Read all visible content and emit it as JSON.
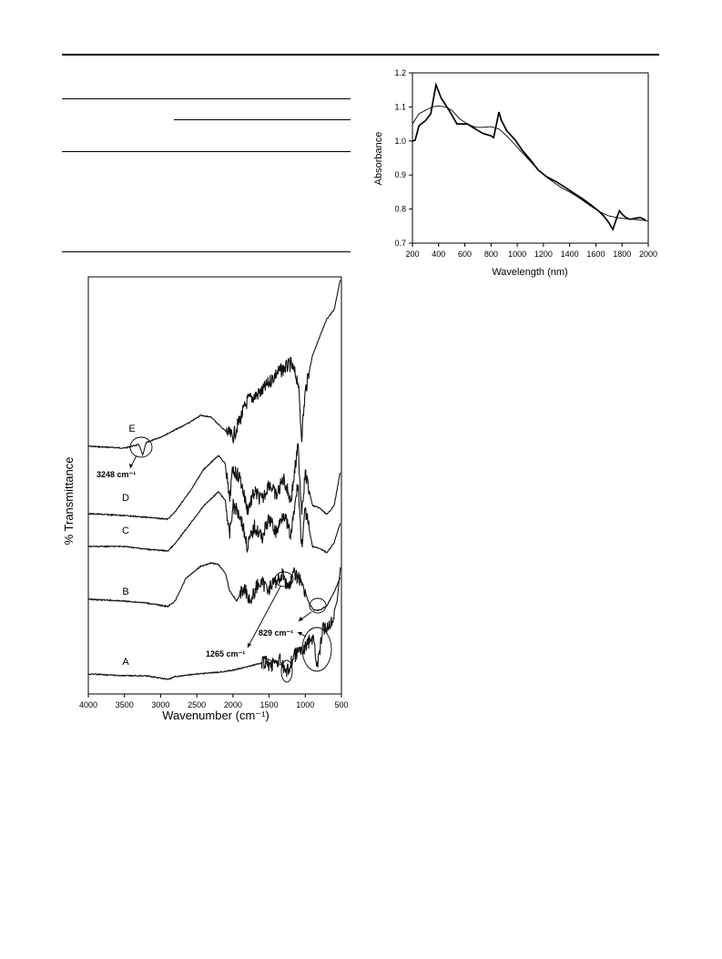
{
  "chart_data": [
    {
      "type": "line",
      "title": "",
      "xlabel": "Wavelength (nm)",
      "ylabel": "Absorbance",
      "xlim": [
        200,
        2000
      ],
      "ylim": [
        0.7,
        1.2
      ],
      "xticks": [
        200,
        400,
        600,
        800,
        1000,
        1200,
        1400,
        1600,
        1800,
        2000
      ],
      "yticks": [
        "0.7",
        "0.8",
        "0.9",
        "1.0",
        "1.1",
        "1.2"
      ],
      "series": [
        {
          "style": "thick",
          "x": [
            200,
            220,
            250,
            300,
            340,
            380,
            420,
            480,
            540,
            580,
            620,
            680,
            740,
            800,
            820,
            860,
            880,
            920,
            980,
            1040,
            1100,
            1160,
            1220,
            1300,
            1380,
            1440,
            1500,
            1560,
            1620,
            1660,
            1700,
            1730,
            1760,
            1780,
            1800,
            1830,
            1860,
            1900,
            1940,
            1980
          ],
          "y": [
            1.0,
            1.002,
            1.045,
            1.06,
            1.08,
            1.165,
            1.125,
            1.09,
            1.05,
            1.05,
            1.05,
            1.035,
            1.022,
            1.015,
            1.01,
            1.085,
            1.06,
            1.03,
            1.005,
            0.972,
            0.945,
            0.915,
            0.896,
            0.88,
            0.86,
            0.845,
            0.83,
            0.813,
            0.795,
            0.78,
            0.76,
            0.74,
            0.775,
            0.795,
            0.785,
            0.775,
            0.77,
            0.773,
            0.775,
            0.768
          ]
        },
        {
          "style": "thin",
          "x": [
            200,
            250,
            300,
            350,
            400,
            450,
            500,
            560,
            620,
            680,
            740,
            800,
            860,
            920,
            980,
            1040,
            1100,
            1160,
            1220,
            1280,
            1340,
            1400,
            1460,
            1520,
            1580,
            1640,
            1700,
            1760,
            1820,
            1880,
            1940,
            2000
          ],
          "y": [
            1.05,
            1.08,
            1.09,
            1.1,
            1.103,
            1.1,
            1.09,
            1.065,
            1.05,
            1.04,
            1.04,
            1.042,
            1.035,
            1.015,
            0.99,
            0.965,
            0.94,
            0.915,
            0.895,
            0.878,
            0.862,
            0.85,
            0.836,
            0.82,
            0.804,
            0.79,
            0.78,
            0.775,
            0.772,
            0.77,
            0.768,
            0.765
          ]
        }
      ]
    },
    {
      "type": "line",
      "title": "",
      "xlabel": "Wavenumber (cm⁻¹)",
      "ylabel": "% Transmittance",
      "xlim": [
        4000,
        500
      ],
      "xticks": [
        4000,
        3500,
        3000,
        2500,
        2000,
        1500,
        1000,
        500
      ],
      "series_labels": [
        "E",
        "D",
        "C",
        "B",
        "A"
      ],
      "annotations": [
        "3248 cm⁻¹",
        "1265 cm⁻¹",
        "829 cm⁻¹"
      ]
    }
  ]
}
